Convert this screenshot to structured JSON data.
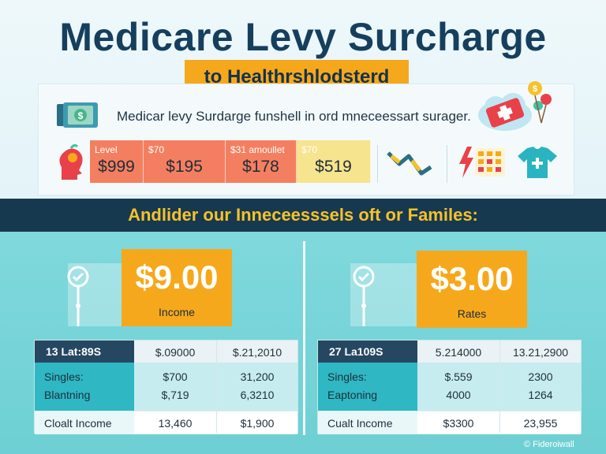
{
  "header": {
    "title": "Medicare Levy Surcharge",
    "subtitle": "to Healthrshlodsterd",
    "description": "Medicar levy Surdarge funshell in ord mneceessart surager."
  },
  "levels": [
    {
      "label": "Level",
      "value": "$999",
      "color": "#f47f60"
    },
    {
      "label": "$70",
      "value": "$195",
      "color": "#f47f60"
    },
    {
      "label": "$31 amoullet",
      "value": "$178",
      "color": "#f47f60"
    },
    {
      "label": "$70",
      "value": "$519",
      "color": "#f6e48e"
    }
  ],
  "band": {
    "text": "Andlider our Inneceesssels oft or Familes:"
  },
  "left_panel": {
    "amount": "$9.00",
    "caption": "Income",
    "table": {
      "header": [
        "13 Lat:89S",
        "$.09000",
        "$.21,2010"
      ],
      "rows": [
        [
          "Singles:",
          "$700",
          "31,200"
        ],
        [
          "Blantning",
          "$,719",
          "6,3210"
        ]
      ],
      "footer": [
        "Cloalt Income",
        "13,460",
        "$1,900"
      ]
    }
  },
  "right_panel": {
    "amount": "$3.00",
    "caption": "Rates",
    "table": {
      "header": [
        "27 La109S",
        "5.214000",
        "13.21,2900"
      ],
      "rows": [
        [
          "Singles:",
          "$.559",
          "2300"
        ],
        [
          "Eaptoning",
          "4000",
          "1264"
        ]
      ],
      "footer": [
        "Cualt Income",
        "$3300",
        "23,955"
      ]
    }
  },
  "watermark": "© Fideroiwall",
  "colors": {
    "navy": "#17394f",
    "orange": "#f6a81c",
    "teal": "#6ed0d4",
    "coral": "#f47f60",
    "yellow": "#f6e48e"
  },
  "icons": [
    "money-stack-icon",
    "first-aid-cloud-icon",
    "balloon-dollar-icon",
    "head-health-icon",
    "trend-line-icon",
    "lightning-icon",
    "calendar-icon",
    "medical-shirt-icon",
    "check-pin-icon"
  ]
}
